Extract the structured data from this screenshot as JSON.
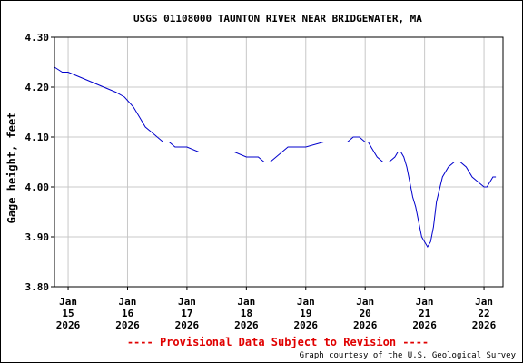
{
  "chart_data": {
    "type": "line",
    "title": "USGS 01108000 TAUNTON RIVER NEAR BRIDGEWATER, MA",
    "ylabel": "Gage height, feet",
    "xlabel": "",
    "ylim": [
      3.8,
      4.3
    ],
    "xlim": [
      14.77,
      22.32
    ],
    "yticks": [
      {
        "value": 3.8,
        "label": "3.80"
      },
      {
        "value": 3.9,
        "label": "3.90"
      },
      {
        "value": 4.0,
        "label": "4.00"
      },
      {
        "value": 4.1,
        "label": "4.10"
      },
      {
        "value": 4.2,
        "label": "4.20"
      },
      {
        "value": 4.3,
        "label": "4.30"
      }
    ],
    "xticks": [
      {
        "value": 15,
        "label": [
          "Jan",
          "15",
          "2026"
        ]
      },
      {
        "value": 16,
        "label": [
          "Jan",
          "16",
          "2026"
        ]
      },
      {
        "value": 17,
        "label": [
          "Jan",
          "17",
          "2026"
        ]
      },
      {
        "value": 18,
        "label": [
          "Jan",
          "18",
          "2026"
        ]
      },
      {
        "value": 19,
        "label": [
          "Jan",
          "19",
          "2026"
        ]
      },
      {
        "value": 20,
        "label": [
          "Jan",
          "20",
          "2026"
        ]
      },
      {
        "value": 21,
        "label": [
          "Jan",
          "21",
          "2026"
        ]
      },
      {
        "value": 22,
        "label": [
          "Jan",
          "22",
          "2026"
        ]
      }
    ],
    "grid": true,
    "series": [
      {
        "color": "#0000cc",
        "x": [
          14.77,
          14.9,
          15.0,
          15.2,
          15.4,
          15.6,
          15.8,
          15.95,
          16.1,
          16.2,
          16.3,
          16.4,
          16.5,
          16.6,
          16.7,
          16.8,
          17.0,
          17.2,
          17.4,
          17.6,
          17.8,
          18.0,
          18.2,
          18.3,
          18.4,
          18.5,
          18.6,
          18.7,
          19.0,
          19.3,
          19.5,
          19.6,
          19.7,
          19.8,
          19.9,
          20.0,
          20.05,
          20.1,
          20.2,
          20.3,
          20.4,
          20.5,
          20.55,
          20.6,
          20.65,
          20.7,
          20.75,
          20.8,
          20.85,
          20.9,
          20.95,
          21.0,
          21.05,
          21.1,
          21.15,
          21.2,
          21.3,
          21.4,
          21.5,
          21.6,
          21.7,
          21.8,
          21.9,
          22.0,
          22.05,
          22.1,
          22.15,
          22.2
        ],
        "y": [
          4.24,
          4.23,
          4.23,
          4.22,
          4.21,
          4.2,
          4.19,
          4.18,
          4.16,
          4.14,
          4.12,
          4.11,
          4.1,
          4.09,
          4.09,
          4.08,
          4.08,
          4.07,
          4.07,
          4.07,
          4.07,
          4.06,
          4.06,
          4.05,
          4.05,
          4.06,
          4.07,
          4.08,
          4.08,
          4.09,
          4.09,
          4.09,
          4.09,
          4.1,
          4.1,
          4.09,
          4.09,
          4.08,
          4.06,
          4.05,
          4.05,
          4.06,
          4.07,
          4.07,
          4.06,
          4.04,
          4.01,
          3.98,
          3.96,
          3.93,
          3.9,
          3.89,
          3.88,
          3.89,
          3.92,
          3.97,
          4.02,
          4.04,
          4.05,
          4.05,
          4.04,
          4.02,
          4.01,
          4.0,
          4.0,
          4.01,
          4.02,
          4.02
        ]
      }
    ],
    "provisional_text": "---- Provisional Data Subject to Revision ----",
    "credit": "Graph courtesy of the U.S. Geological Survey"
  }
}
